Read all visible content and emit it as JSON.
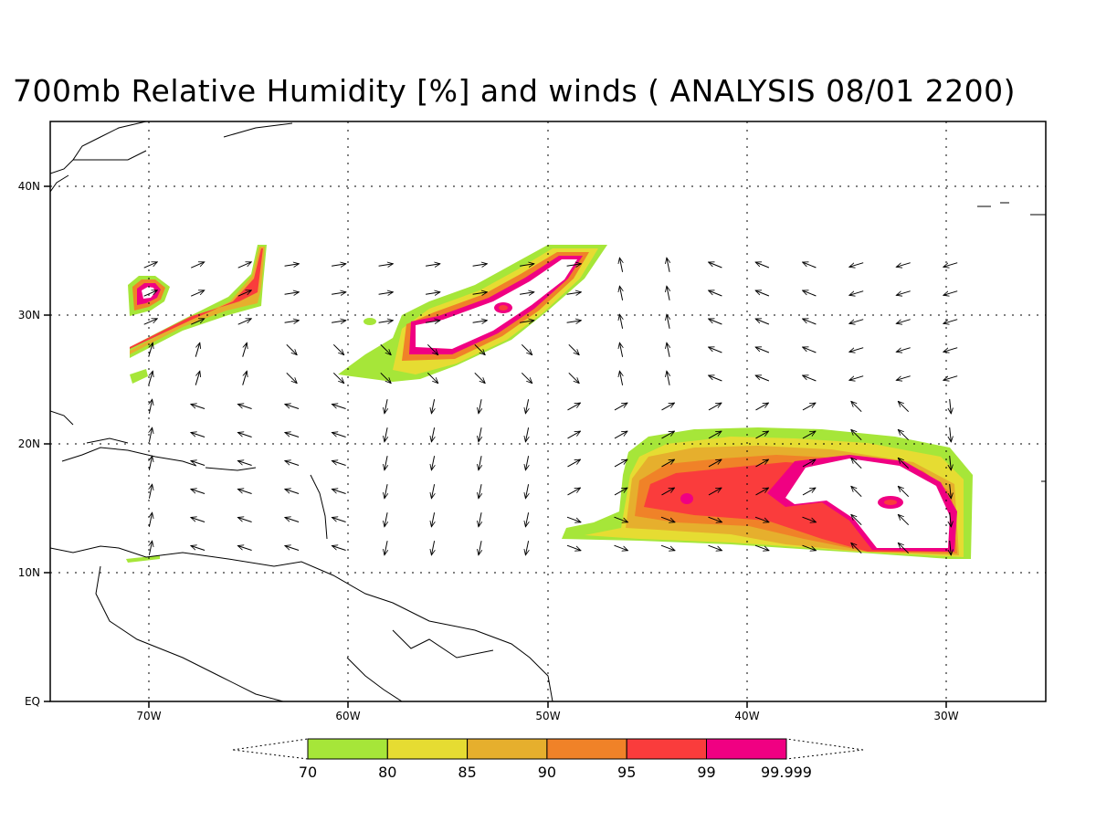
{
  "title": "700mb Relative Humidity [%] and winds ( ANALYSIS 08/01 2200)",
  "axes": {
    "lon_labels": [
      "70W",
      "60W",
      "50W",
      "40W",
      "30W"
    ],
    "lat_labels": [
      "EQ",
      "10N",
      "20N",
      "30N",
      "40N"
    ]
  },
  "colorbar": {
    "labels": [
      "70",
      "80",
      "85",
      "90",
      "95",
      "99",
      "99.999"
    ],
    "colors": [
      "#a6e639",
      "#e6dc32",
      "#e6af2d",
      "#f08228",
      "#fa3c3c",
      "#f00082"
    ]
  },
  "map": {
    "lon_range": [
      -75,
      -25
    ],
    "lat_range": [
      0,
      45
    ],
    "grid": "dotted",
    "overlay": "wind-vectors"
  }
}
